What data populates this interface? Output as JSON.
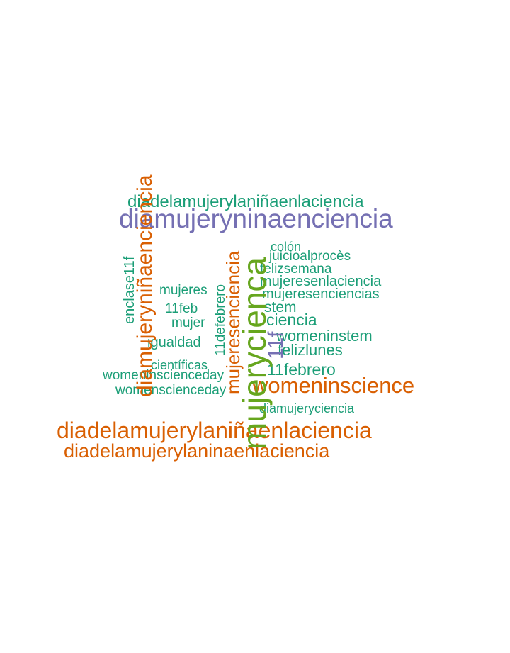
{
  "palette": {
    "teal": "#1b9e77",
    "orange": "#d95f02",
    "purple": "#7570b3",
    "green": "#66a61e"
  },
  "words": {
    "mujerycienca": "mujerycienca",
    "diamujerynina": "diamujeryninaenciencia",
    "diadelamujerylanina_tilde": "diadelamujerylaniñaenlaciencia",
    "diamujeryninaenciencia_v": "diamujeryniñaenciencia",
    "diadelamujerylanina_big": "diadelamujerylaniñaenlaciencia",
    "diadelamujerylaninaenlaciencia": "diadelamujerylaninaenlaciencia",
    "womeninscience": "womeninscience",
    "mujeresenciencia": "mujeresenciencia",
    "enclase11f": "enclase11f",
    "hashtag11f": "11f",
    "colon": "colón",
    "juicioalproces": "juicioalprocès",
    "felizsemana": "felizsemana",
    "mujeresenlaciencia": "mujeresenlaciencia",
    "mujeresenciencias": "mujeresenciencias",
    "stem": "stem",
    "ciencia": "ciencia",
    "womeninstem": "womeninstem",
    "felizlunes": "felizlunes",
    "once_febrero": "11febrero",
    "diamujeryciencia": "diamujeryciencia",
    "mujeres": "mujeres",
    "once_feb": "11feb",
    "mujer": "mujer",
    "igualdad": "igualdad",
    "cientificas": "científicas",
    "womeninscienceday": "womeninscienceday",
    "womenscienceday": "womenscienceday",
    "onceDeFebrero": "11defebrero"
  }
}
